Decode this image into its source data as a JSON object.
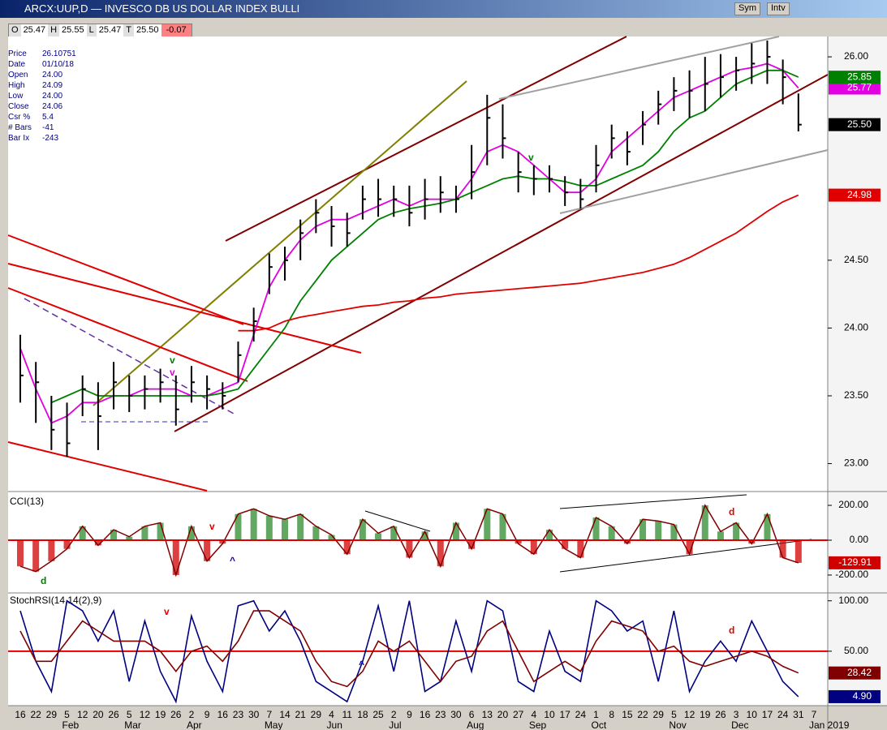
{
  "window": {
    "title": "ARCX:UUP,D — INVESCO DB US DOLLAR INDEX BULLI",
    "buttons": [
      "Sym",
      "Intv"
    ]
  },
  "quote": {
    "items": [
      {
        "label": "O",
        "value": "25.47"
      },
      {
        "label": "H",
        "value": "25.55"
      },
      {
        "label": "L",
        "value": "25.47"
      },
      {
        "label": "T",
        "value": "25.50"
      }
    ],
    "change": "-0.07"
  },
  "info": [
    [
      "Price",
      "26.10751"
    ],
    [
      "Date",
      "01/10/18"
    ],
    [
      "Open",
      "24.00"
    ],
    [
      "High",
      "24.09"
    ],
    [
      "Low",
      "24.00"
    ],
    [
      "Close",
      "24.06"
    ],
    [
      "Csr %",
      "5.4"
    ],
    [
      "# Bars",
      "-41"
    ],
    [
      "Bar Ix",
      "-243"
    ]
  ],
  "annotations": [
    {
      "text": "v",
      "color": "#008000"
    },
    {
      "text": "v",
      "color": "#e000e0"
    },
    {
      "text": "v",
      "color": "#008000"
    },
    {
      "text": "d",
      "color": "#008000"
    },
    {
      "text": "v",
      "color": "#e00000"
    },
    {
      "text": "^",
      "color": "#0000c0"
    },
    {
      "text": "d",
      "color": "#e00000"
    },
    {
      "text": "v",
      "color": "#e00000"
    },
    {
      "text": "^",
      "color": "#0000c0"
    },
    {
      "text": "d",
      "color": "#e00000"
    }
  ],
  "chart_data": [
    {
      "type": "ohlc",
      "color": "#000000",
      "last_label": "25.50",
      "ylim": [
        22.8,
        26.15
      ],
      "yticks": [
        {
          "value": 23,
          "label": "23.00"
        },
        {
          "value": 23.5,
          "label": "23.50"
        },
        {
          "value": 24,
          "label": "24.00"
        },
        {
          "value": 24.5,
          "label": "24.50"
        },
        {
          "value": 26,
          "label": "26.00"
        }
      ],
      "high": [
        23.95,
        23.75,
        23.5,
        23.45,
        23.65,
        23.6,
        23.75,
        23.65,
        23.65,
        23.7,
        23.65,
        23.72,
        23.65,
        23.6,
        23.9,
        24.15,
        24.55,
        24.6,
        24.8,
        24.95,
        24.9,
        24.85,
        25.05,
        25.1,
        25.05,
        25.05,
        25.1,
        25.12,
        25.05,
        25.35,
        25.72,
        25.65,
        25.3,
        25.2,
        25.2,
        25.12,
        25.1,
        25.35,
        25.5,
        25.45,
        25.6,
        25.75,
        25.85,
        25.9,
        26.0,
        26.02,
        26.0,
        26.1,
        26.12,
        25.98,
        25.73,
        null
      ],
      "low": [
        23.45,
        23.3,
        23.1,
        23.05,
        23.35,
        23.1,
        23.4,
        23.38,
        23.4,
        23.45,
        23.28,
        23.45,
        23.4,
        23.4,
        23.6,
        23.9,
        24.25,
        24.35,
        24.5,
        24.7,
        24.6,
        24.6,
        24.8,
        24.82,
        24.82,
        24.75,
        24.8,
        24.85,
        24.85,
        24.95,
        25.2,
        25.25,
        25.0,
        24.98,
        25.0,
        24.9,
        24.88,
        25.0,
        25.25,
        25.2,
        25.35,
        25.5,
        25.6,
        25.55,
        25.6,
        25.7,
        25.75,
        25.8,
        25.8,
        25.65,
        25.45,
        null
      ],
      "close": [
        23.65,
        23.6,
        23.25,
        23.15,
        23.55,
        23.35,
        23.6,
        23.5,
        23.55,
        23.6,
        23.4,
        23.6,
        23.55,
        23.5,
        23.8,
        24.05,
        24.45,
        24.5,
        24.7,
        24.85,
        24.75,
        24.7,
        24.95,
        24.95,
        24.95,
        24.85,
        24.95,
        25.0,
        24.95,
        25.15,
        25.55,
        25.4,
        25.15,
        25.1,
        25.1,
        25.0,
        24.95,
        25.2,
        25.4,
        25.3,
        25.5,
        25.65,
        25.75,
        25.75,
        25.8,
        25.85,
        25.9,
        25.95,
        26.0,
        25.85,
        25.5,
        null
      ],
      "series": [
        {
          "color": "#e000e0",
          "last_label": "25.77",
          "values": [
            23.85,
            23.55,
            23.3,
            23.35,
            23.45,
            23.45,
            23.5,
            23.5,
            23.55,
            23.55,
            23.55,
            23.5,
            23.5,
            23.55,
            23.6,
            23.95,
            24.3,
            24.5,
            24.65,
            24.75,
            24.8,
            24.8,
            24.85,
            24.9,
            24.95,
            24.9,
            24.95,
            24.95,
            24.95,
            25.1,
            25.3,
            25.35,
            25.3,
            25.2,
            25.1,
            25.0,
            25.0,
            25.1,
            25.3,
            25.4,
            25.5,
            25.6,
            25.7,
            25.75,
            25.8,
            25.85,
            25.9,
            25.92,
            25.95,
            25.9,
            25.77,
            null
          ]
        },
        {
          "color": "#008000",
          "last_label": "25.85",
          "values": [
            null,
            null,
            23.45,
            23.5,
            23.55,
            23.5,
            23.5,
            23.5,
            23.5,
            23.5,
            23.5,
            23.5,
            23.5,
            23.52,
            23.55,
            23.7,
            23.85,
            24.0,
            24.2,
            24.35,
            24.5,
            24.6,
            24.7,
            24.8,
            24.85,
            24.88,
            24.9,
            24.92,
            24.95,
            25.0,
            25.05,
            25.1,
            25.12,
            25.1,
            25.1,
            25.08,
            25.05,
            25.05,
            25.1,
            25.15,
            25.2,
            25.3,
            25.45,
            25.55,
            25.6,
            25.7,
            25.8,
            25.85,
            25.9,
            25.9,
            25.85,
            null
          ]
        },
        {
          "color": "#e00000",
          "last_label": "24.98",
          "values": [
            null,
            null,
            null,
            null,
            null,
            null,
            null,
            null,
            null,
            null,
            null,
            null,
            null,
            null,
            23.98,
            23.98,
            24.0,
            24.05,
            24.08,
            24.1,
            24.12,
            24.14,
            24.16,
            24.17,
            24.19,
            24.2,
            24.22,
            24.23,
            24.25,
            24.26,
            24.27,
            24.28,
            24.29,
            24.3,
            24.31,
            24.32,
            24.33,
            24.35,
            24.37,
            24.39,
            24.41,
            24.44,
            24.47,
            24.52,
            24.58,
            24.64,
            24.7,
            24.78,
            24.86,
            24.93,
            24.98,
            null
          ]
        }
      ]
    },
    {
      "type": "histogram",
      "title": "CCI(13)",
      "pos_color": "#2e8b2e",
      "neg_color": "#d00000",
      "line_color": "#800000",
      "ref_line": 0,
      "ref_color": "#e00000",
      "last_label": "-129.91",
      "ylim": [
        -298,
        270
      ],
      "yticks": [
        {
          "value": 200,
          "label": "200.00"
        },
        {
          "value": 0,
          "label": "0.00"
        },
        {
          "value": -200,
          "label": "-200.00"
        }
      ],
      "values": [
        -150,
        -180,
        -120,
        -50,
        80,
        -30,
        60,
        20,
        80,
        100,
        -200,
        80,
        -120,
        -20,
        150,
        180,
        140,
        120,
        150,
        80,
        30,
        -80,
        120,
        40,
        80,
        -100,
        50,
        -150,
        100,
        -50,
        180,
        150,
        -20,
        -80,
        60,
        -50,
        -100,
        130,
        80,
        -20,
        120,
        110,
        90,
        -80,
        200,
        50,
        100,
        -20,
        150,
        -100,
        -129.91,
        null
      ]
    },
    {
      "type": "line",
      "title": "StochRSI(14,14(2),9)",
      "ref_line": 50,
      "ref_color": "#e00000",
      "ylim": [
        -4,
        107
      ],
      "yticks": [
        {
          "value": 100,
          "label": "100.00"
        },
        {
          "value": 50,
          "label": "50.00"
        }
      ],
      "categories": [
        "16",
        "22",
        "29",
        "5",
        "12",
        "20",
        "26",
        "5",
        "12",
        "19",
        "26",
        "2",
        "9",
        "16",
        "23",
        "30",
        "7",
        "14",
        "21",
        "29",
        "4",
        "11",
        "18",
        "25",
        "2",
        "9",
        "16",
        "23",
        "30",
        "6",
        "13",
        "20",
        "27",
        "4",
        "10",
        "17",
        "24",
        "1",
        "8",
        "15",
        "22",
        "29",
        "5",
        "12",
        "19",
        "26",
        "3",
        "10",
        "17",
        "24",
        "31",
        "7"
      ],
      "months": [
        null,
        null,
        null,
        "Feb",
        null,
        null,
        null,
        "Mar",
        null,
        null,
        null,
        "Apr",
        null,
        null,
        null,
        null,
        "May",
        null,
        null,
        null,
        "Jun",
        null,
        null,
        null,
        "Jul",
        null,
        null,
        null,
        null,
        "Aug",
        null,
        null,
        null,
        "Sep",
        null,
        null,
        null,
        "Oct",
        null,
        null,
        null,
        null,
        "Nov",
        null,
        null,
        null,
        "Dec",
        null,
        null,
        null,
        null,
        "Jan 2019"
      ],
      "series": [
        {
          "color": "#000080",
          "last_label": "4.90",
          "values": [
            90,
            40,
            10,
            100,
            90,
            60,
            90,
            20,
            80,
            30,
            0,
            85,
            40,
            10,
            95,
            100,
            70,
            90,
            60,
            20,
            10,
            0,
            40,
            95,
            30,
            100,
            10,
            20,
            80,
            30,
            100,
            90,
            20,
            10,
            70,
            30,
            20,
            100,
            90,
            70,
            80,
            20,
            90,
            10,
            40,
            60,
            40,
            80,
            50,
            20,
            4.9,
            null
          ]
        },
        {
          "color": "#800000",
          "last_label": "28.42",
          "values": [
            70,
            40,
            40,
            60,
            80,
            70,
            60,
            60,
            60,
            50,
            30,
            50,
            55,
            40,
            60,
            90,
            90,
            80,
            70,
            40,
            20,
            15,
            30,
            60,
            50,
            60,
            40,
            20,
            40,
            45,
            70,
            80,
            50,
            20,
            30,
            40,
            30,
            60,
            80,
            75,
            70,
            50,
            55,
            40,
            35,
            40,
            45,
            50,
            45,
            35,
            28.42,
            null
          ]
        }
      ]
    }
  ]
}
